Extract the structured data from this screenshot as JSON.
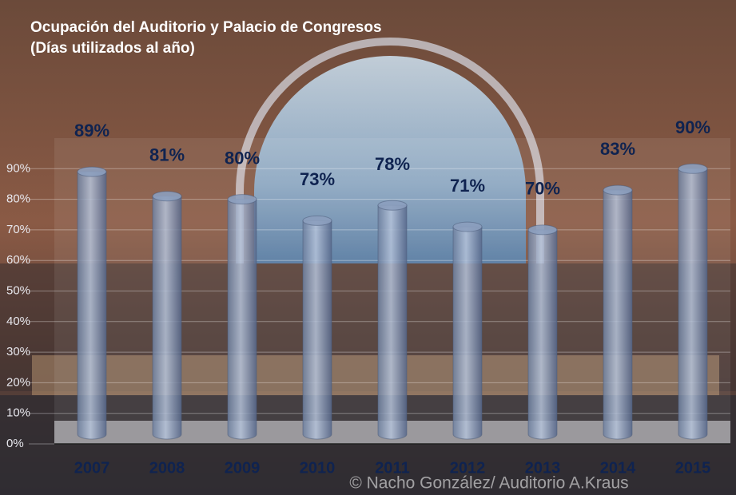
{
  "chart_data": {
    "type": "bar",
    "title": "Ocupación del Auditorio y Palacio de Congresos",
    "subtitle": "(Días utilizados al año)",
    "credit": "© Nacho González/ Auditorio A.Kraus",
    "categories": [
      "2007",
      "2008",
      "2009",
      "2010",
      "2011",
      "2012",
      "2013",
      "2014",
      "2015"
    ],
    "values": [
      89,
      81,
      80,
      73,
      78,
      71,
      70,
      83,
      90
    ],
    "value_labels": [
      "89%",
      "81%",
      "80%",
      "73%",
      "78%",
      "71%",
      "70%",
      "83%",
      "90%"
    ],
    "color": "#8c9fbe",
    "ylim": [
      0,
      100
    ],
    "yticks": [
      {
        "value": 0,
        "label": "0%"
      },
      {
        "value": 10,
        "label": "10%"
      },
      {
        "value": 20,
        "label": "20%"
      },
      {
        "value": 30,
        "label": "30%"
      },
      {
        "value": 40,
        "label": "40%"
      },
      {
        "value": 50,
        "label": "50%"
      },
      {
        "value": 60,
        "label": "60%"
      },
      {
        "value": 70,
        "label": "70%"
      },
      {
        "value": 80,
        "label": "80%"
      },
      {
        "value": 90,
        "label": "90%"
      }
    ],
    "grid": true
  }
}
